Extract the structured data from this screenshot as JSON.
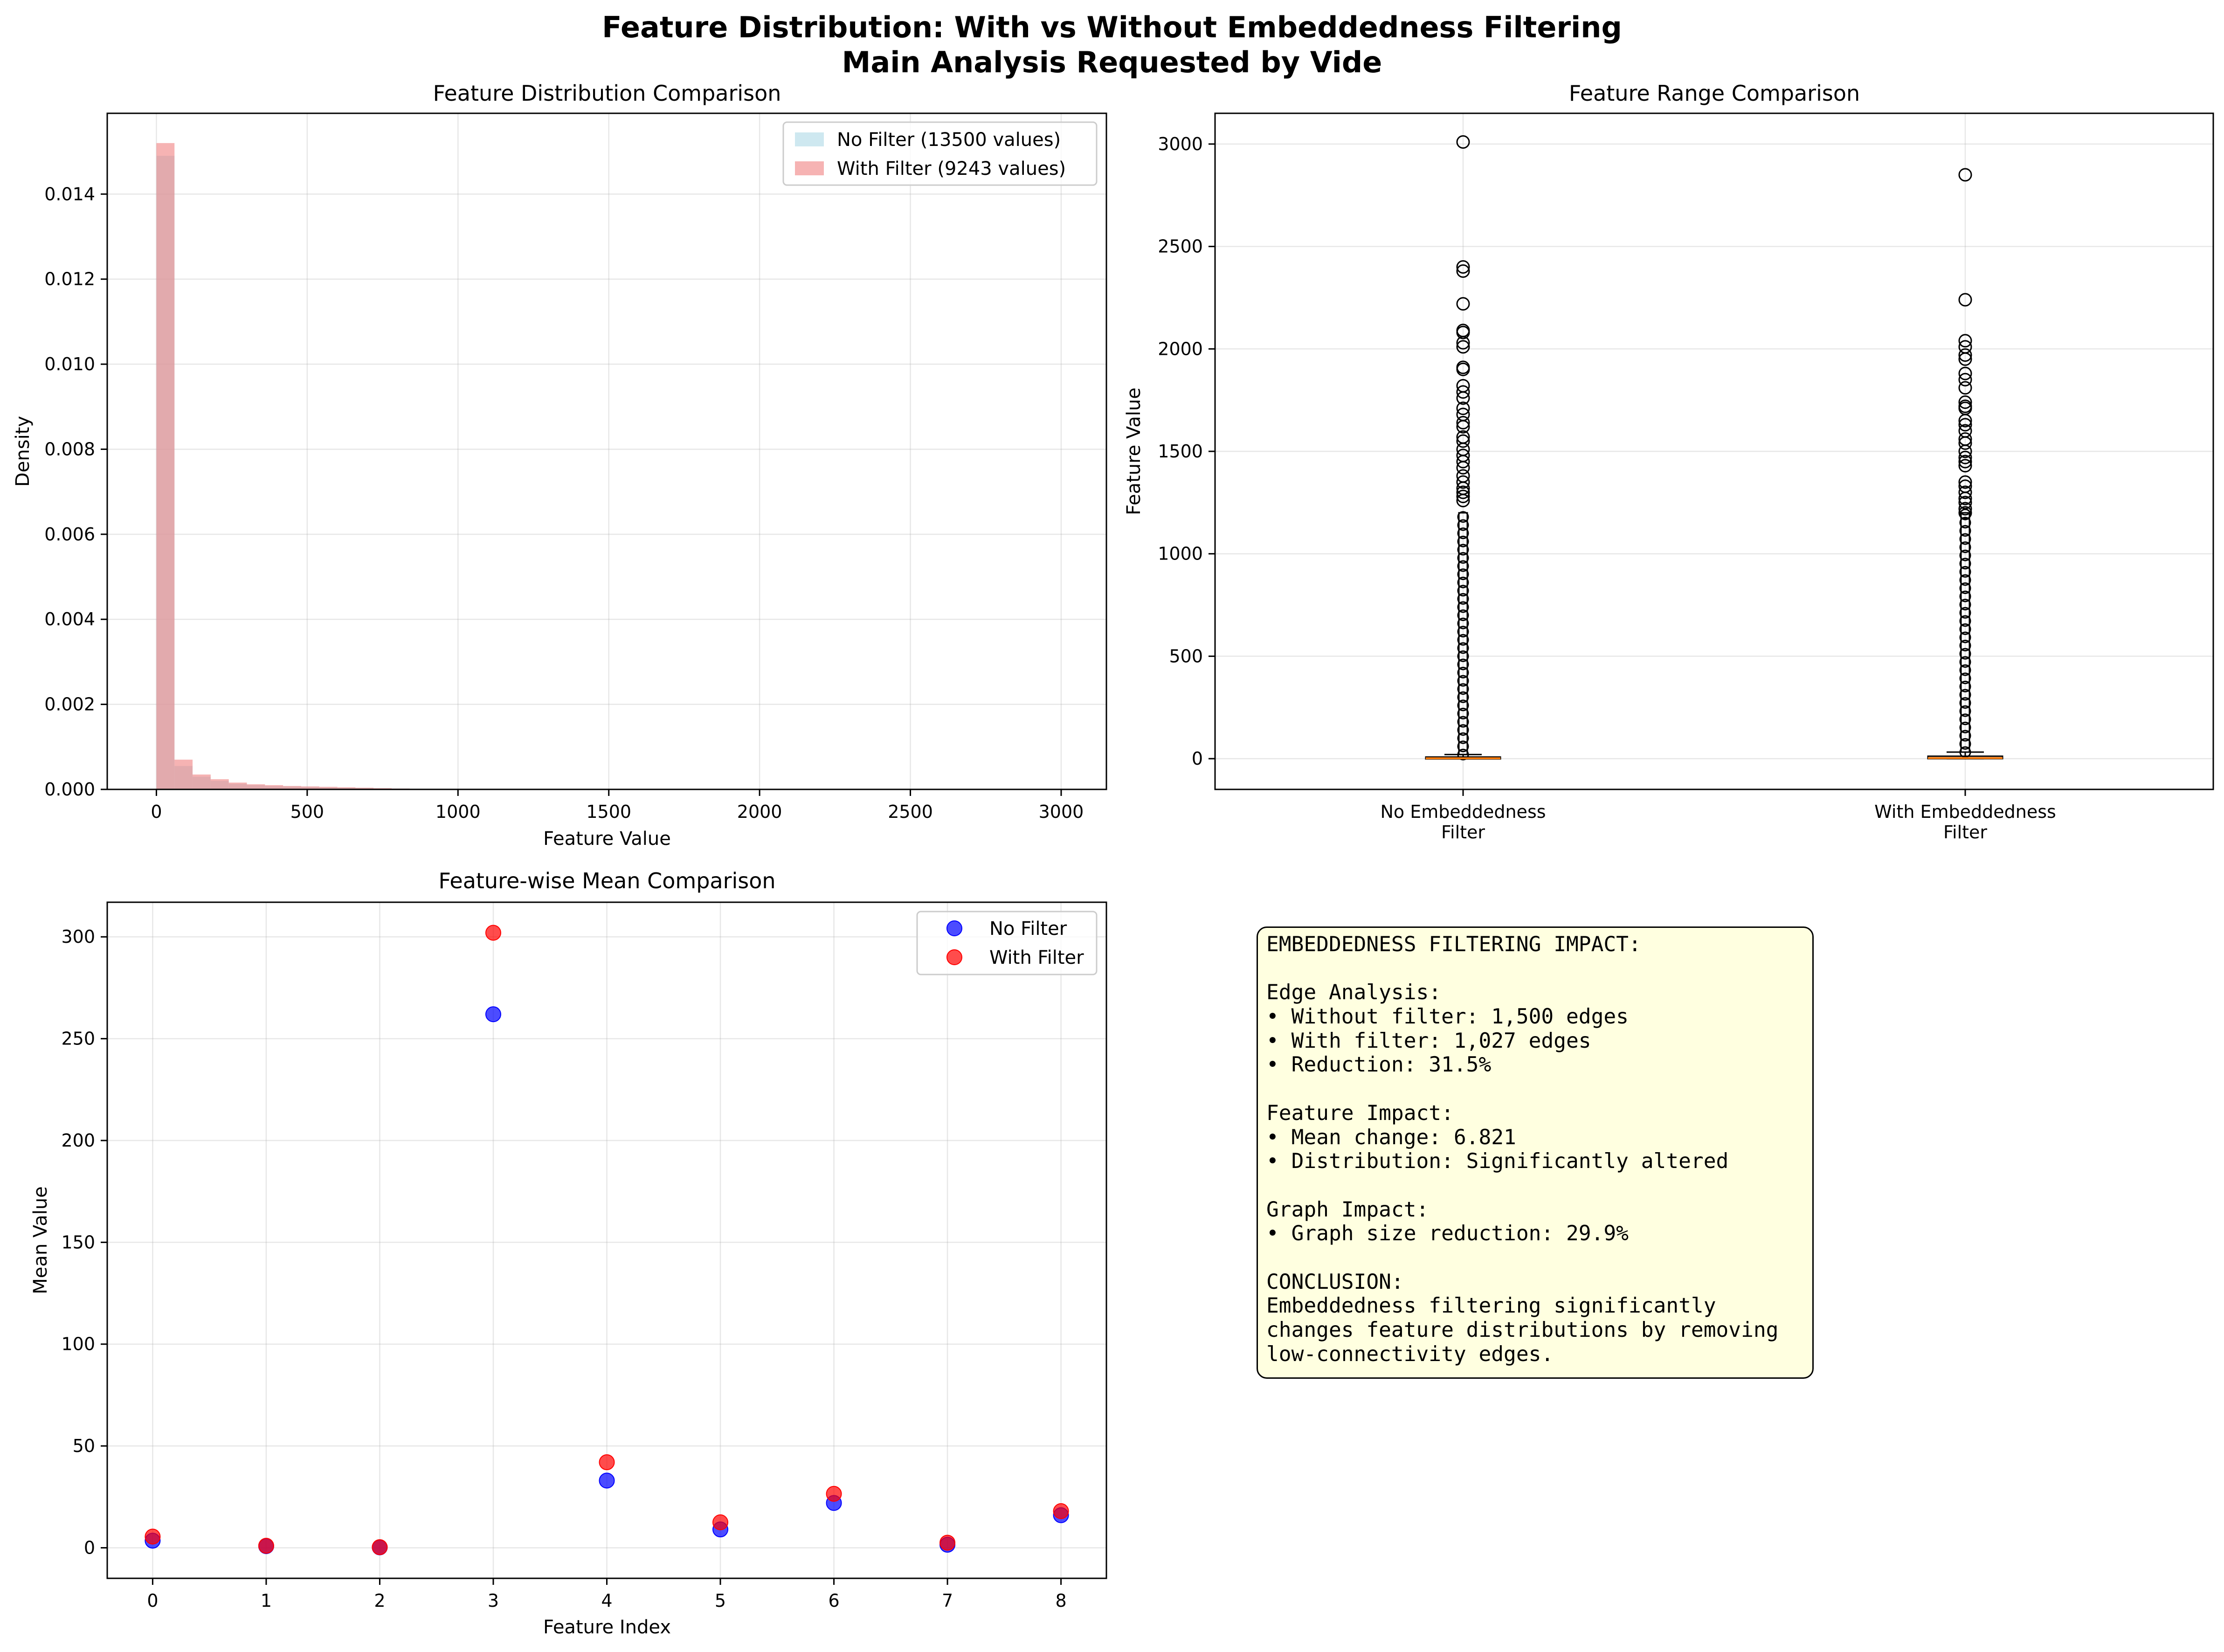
{
  "figure": {
    "suptitle_line1": "Feature Distribution: With vs Without Embeddedness Filtering",
    "suptitle_line2": "Main Analysis Requested by Vide"
  },
  "chart_data": [
    {
      "type": "bar",
      "title": "Feature Distribution Comparison",
      "xlabel": "Feature Value",
      "ylabel": "Density",
      "xlim": [
        -163,
        3150
      ],
      "ylim": [
        0,
        0.0159
      ],
      "xticks": [
        0,
        500,
        1000,
        1500,
        2000,
        2500,
        3000
      ],
      "yticks": [
        0.0,
        0.002,
        0.004,
        0.006,
        0.008,
        0.01,
        0.012,
        0.014
      ],
      "ytick_labels": [
        "0.000",
        "0.002",
        "0.004",
        "0.006",
        "0.008",
        "0.010",
        "0.012",
        "0.014"
      ],
      "grid": true,
      "legend_position": "upper right",
      "bin_width": 60,
      "series": [
        {
          "name": "No Filter (13500 values)",
          "color": "#add8e6",
          "bins": [
            0,
            60,
            120,
            180,
            240,
            300,
            360,
            420,
            480,
            540,
            600,
            660,
            720,
            780,
            840,
            900,
            960,
            1020,
            1080,
            1140,
            1200
          ],
          "values": [
            0.0149,
            0.00055,
            0.0003,
            0.0002,
            0.00013,
            0.0001,
            8e-05,
            7e-05,
            6e-05,
            5e-05,
            4e-05,
            3e-05,
            2e-05,
            2e-05,
            1.5e-05,
            1.2e-05,
            1e-05,
            8e-06,
            6e-06,
            4e-06,
            3e-06
          ]
        },
        {
          "name": "With Filter (9243 values)",
          "color": "#f08080",
          "bins": [
            0,
            60,
            120,
            180,
            240,
            300,
            360,
            420,
            480,
            540,
            600,
            660,
            720,
            780,
            840,
            900,
            960,
            1020,
            1080,
            1140,
            1200
          ],
          "values": [
            0.0152,
            0.0007,
            0.00035,
            0.00024,
            0.00016,
            0.00012,
            0.0001,
            8e-05,
            7e-05,
            6e-05,
            5e-05,
            4e-05,
            3e-05,
            2e-05,
            1.5e-05,
            1.2e-05,
            1e-05,
            8e-06,
            6e-06,
            4e-06,
            3e-06
          ]
        }
      ]
    },
    {
      "type": "box",
      "title": "Feature Range Comparison",
      "ylabel": "Feature Value",
      "ylim": [
        -150,
        3150
      ],
      "yticks": [
        0,
        500,
        1000,
        1500,
        2000,
        2500,
        3000
      ],
      "grid": true,
      "categories": [
        "No Embeddedness\nFilter",
        "With Embeddedness\nFilter"
      ],
      "boxes": [
        {
          "q1": 0,
          "median": 2,
          "q3": 8,
          "whisker_low": 0,
          "whisker_high": 20,
          "outliers": [
            3010,
            2400,
            2380,
            2220,
            2090,
            2080,
            2030,
            2010,
            1910,
            1900,
            1820,
            1790,
            1760,
            1710,
            1680,
            1640,
            1620,
            1570,
            1550,
            1510,
            1480,
            1450,
            1420,
            1380,
            1350,
            1320,
            1300,
            1280,
            1260
          ]
        },
        {
          "q1": 0,
          "median": 3,
          "q3": 12,
          "whisker_low": 0,
          "whisker_high": 32,
          "outliers": [
            2850,
            2240,
            2040,
            2010,
            1970,
            1950,
            1880,
            1850,
            1810,
            1740,
            1720,
            1710,
            1650,
            1630,
            1600,
            1560,
            1540,
            1500,
            1470,
            1450,
            1430,
            1350,
            1330,
            1300,
            1270,
            1250,
            1220,
            1200
          ]
        }
      ],
      "dense_outliers_to": 1200
    },
    {
      "type": "scatter",
      "title": "Feature-wise Mean Comparison",
      "xlabel": "Feature Index",
      "ylabel": "Mean Value",
      "xlim": [
        -0.4,
        8.4
      ],
      "ylim": [
        -15,
        317
      ],
      "xticks": [
        0,
        1,
        2,
        3,
        4,
        5,
        6,
        7,
        8
      ],
      "yticks": [
        0,
        50,
        100,
        150,
        200,
        250,
        300
      ],
      "grid": true,
      "legend_position": "upper right",
      "x": [
        0,
        1,
        2,
        3,
        4,
        5,
        6,
        7,
        8
      ],
      "series": [
        {
          "name": "No Filter",
          "color": "#0000ff",
          "values": [
            3.5,
            0.8,
            0.2,
            262,
            33,
            9,
            22,
            1.5,
            16
          ]
        },
        {
          "name": "With Filter",
          "color": "#ff0000",
          "values": [
            5.5,
            1.0,
            0.3,
            302,
            42,
            12.5,
            26.5,
            2.5,
            18
          ]
        }
      ]
    }
  ],
  "summary": {
    "lines": [
      "EMBEDDEDNESS FILTERING IMPACT:",
      "",
      "Edge Analysis:",
      "• Without filter: 1,500 edges",
      "• With filter: 1,027 edges",
      "• Reduction: 31.5%",
      "",
      "Feature Impact:",
      "• Mean change: 6.821",
      "• Distribution: Significantly altered",
      "",
      "Graph Impact:",
      "• Graph size reduction: 29.9%",
      "",
      "CONCLUSION:",
      "Embeddedness filtering significantly",
      "changes feature distributions by removing",
      "low-connectivity edges."
    ]
  }
}
